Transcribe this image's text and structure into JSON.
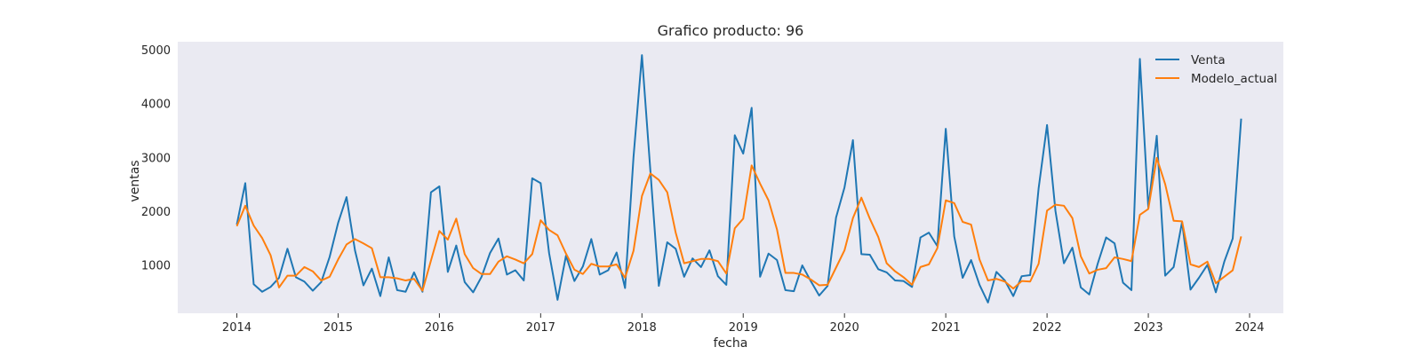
{
  "chart_data": {
    "type": "line",
    "title": "Grafico producto: 96",
    "xlabel": "fecha",
    "ylabel": "ventas",
    "x_start": "2014-01",
    "x_frequency": "monthly",
    "xticks": [
      "2014",
      "2015",
      "2016",
      "2017",
      "2018",
      "2019",
      "2020",
      "2021",
      "2022",
      "2023",
      "2024"
    ],
    "yticks": [
      1000,
      2000,
      3000,
      4000,
      5000
    ],
    "xlim": [
      "2013-06",
      "2024-05"
    ],
    "ylim": [
      100,
      5150
    ],
    "grid": false,
    "legend_position": "top-right",
    "series": [
      {
        "name": "Venta",
        "color": "#1f77b4",
        "values": [
          1750,
          2520,
          640,
          500,
          590,
          760,
          1300,
          770,
          690,
          520,
          680,
          1150,
          1780,
          2260,
          1270,
          620,
          930,
          420,
          1140,
          530,
          500,
          860,
          500,
          2350,
          2460,
          870,
          1360,
          680,
          490,
          780,
          1220,
          1490,
          820,
          900,
          710,
          2610,
          2520,
          1220,
          350,
          1170,
          700,
          970,
          1480,
          820,
          900,
          1230,
          570,
          3000,
          4900,
          2750,
          610,
          1420,
          1300,
          780,
          1120,
          960,
          1270,
          790,
          630,
          3410,
          3070,
          3920,
          780,
          1210,
          1090,
          530,
          510,
          990,
          700,
          430,
          610,
          1880,
          2440,
          3320,
          1200,
          1190,
          920,
          860,
          710,
          700,
          590,
          1510,
          1600,
          1350,
          3530,
          1530,
          760,
          1090,
          630,
          300,
          870,
          710,
          420,
          790,
          810,
          2420,
          3600,
          2000,
          1030,
          1320,
          580,
          450,
          1020,
          1510,
          1400,
          670,
          530,
          4830,
          2060,
          3400,
          800,
          960,
          1800,
          540,
          760,
          1000,
          490,
          1060,
          1490,
          3720
        ]
      },
      {
        "name": "Modelo_actual",
        "color": "#ff7f0e",
        "values": [
          1720,
          2100,
          1730,
          1500,
          1180,
          580,
          800,
          800,
          960,
          880,
          710,
          780,
          1100,
          1380,
          1480,
          1400,
          1310,
          770,
          770,
          750,
          710,
          740,
          520,
          1080,
          1630,
          1470,
          1860,
          1200,
          940,
          830,
          830,
          1060,
          1160,
          1100,
          1030,
          1200,
          1830,
          1650,
          1550,
          1210,
          910,
          830,
          1020,
          970,
          970,
          1010,
          760,
          1260,
          2280,
          2700,
          2580,
          2350,
          1600,
          1030,
          1070,
          1110,
          1110,
          1070,
          840,
          1680,
          1860,
          2850,
          2510,
          2200,
          1660,
          850,
          850,
          820,
          730,
          620,
          630,
          950,
          1270,
          1870,
          2250,
          1860,
          1520,
          1030,
          880,
          770,
          630,
          960,
          1010,
          1310,
          2200,
          2150,
          1800,
          1750,
          1100,
          710,
          740,
          690,
          560,
          700,
          690,
          1020,
          2010,
          2120,
          2100,
          1870,
          1160,
          840,
          910,
          940,
          1140,
          1110,
          1070,
          1930,
          2040,
          2990,
          2500,
          1820,
          1810,
          1010,
          960,
          1060,
          660,
          780,
          900,
          1530
        ]
      }
    ]
  }
}
